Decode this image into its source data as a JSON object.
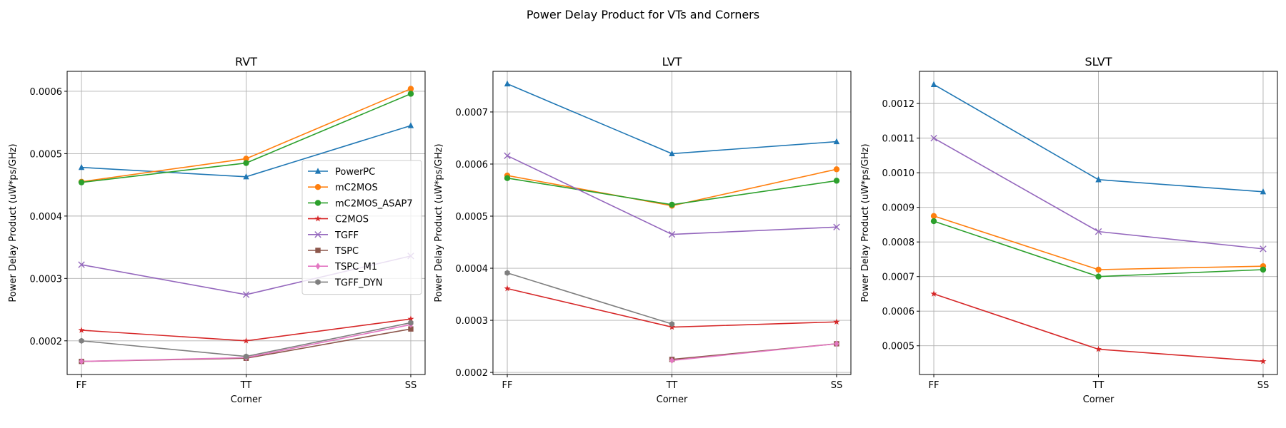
{
  "figure": {
    "title": "Power Delay Product for VTs and Corners"
  },
  "legend_panel": 0,
  "chart_data": [
    {
      "type": "line",
      "title": "RVT",
      "xlabel": "Corner",
      "ylabel": "Power Delay Product (uW*ps/GHz)",
      "categories": [
        "FF",
        "TT",
        "SS"
      ],
      "ylim": [
        0.000146,
        0.000632
      ],
      "yticks": [
        0.0002,
        0.0003,
        0.0004,
        0.0005,
        0.0006
      ],
      "ytick_labels": [
        "0.0002",
        "0.0003",
        "0.0004",
        "0.0005",
        "0.0006"
      ],
      "grid": true,
      "legend": "center-right",
      "series": [
        {
          "name": "PowerPC",
          "values": [
            0.000478,
            0.000463,
            0.000545
          ],
          "color": "#1f77b4",
          "marker": "triangle"
        },
        {
          "name": "mC2MOS",
          "values": [
            0.000455,
            0.000492,
            0.000604
          ],
          "color": "#ff7f0e",
          "marker": "circle"
        },
        {
          "name": "mC2MOS_ASAP7",
          "values": [
            0.000454,
            0.000485,
            0.000596
          ],
          "color": "#2ca02c",
          "marker": "circle"
        },
        {
          "name": "C2MOS",
          "values": [
            0.000217,
            0.0002,
            0.000235
          ],
          "color": "#d62728",
          "marker": "star"
        },
        {
          "name": "TGFF",
          "values": [
            0.000322,
            0.000274,
            0.000336
          ],
          "color": "#9467bd",
          "marker": "x"
        },
        {
          "name": "TSPC",
          "values": [
            0.000167,
            0.000172,
            0.000219
          ],
          "color": "#8c564b",
          "marker": "square"
        },
        {
          "name": "TSPC_M1",
          "values": [
            0.000167,
            0.000173,
            0.000226
          ],
          "color": "#e377c2",
          "marker": "diamond"
        },
        {
          "name": "TGFF_DYN",
          "values": [
            0.0002,
            0.000175,
            0.000229
          ],
          "color": "#7f7f7f",
          "marker": "hexagon"
        }
      ]
    },
    {
      "type": "line",
      "title": "LVT",
      "xlabel": "Corner",
      "ylabel": "Power Delay Product (uW*ps/GHz)",
      "categories": [
        "FF",
        "TT",
        "SS"
      ],
      "ylim": [
        0.000196,
        0.000778
      ],
      "yticks": [
        0.0002,
        0.0003,
        0.0004,
        0.0005,
        0.0006,
        0.0007
      ],
      "ytick_labels": [
        "0.0002",
        "0.0003",
        "0.0004",
        "0.0005",
        "0.0006",
        "0.0007"
      ],
      "grid": true,
      "series": [
        {
          "name": "PowerPC",
          "values": [
            0.000754,
            0.00062,
            0.000643
          ],
          "color": "#1f77b4",
          "marker": "triangle"
        },
        {
          "name": "mC2MOS",
          "values": [
            0.000578,
            0.00052,
            0.00059
          ],
          "color": "#ff7f0e",
          "marker": "circle"
        },
        {
          "name": "mC2MOS_ASAP7",
          "values": [
            0.000573,
            0.000522,
            0.000568
          ],
          "color": "#2ca02c",
          "marker": "circle"
        },
        {
          "name": "C2MOS",
          "values": [
            0.000361,
            0.000287,
            0.000297
          ],
          "color": "#d62728",
          "marker": "star"
        },
        {
          "name": "TGFF",
          "values": [
            0.000616,
            0.000465,
            0.000479
          ],
          "color": "#9467bd",
          "marker": "x"
        },
        {
          "name": "TSPC",
          "values": [
            null,
            0.000225,
            0.000255
          ],
          "color": "#8c564b",
          "marker": "square"
        },
        {
          "name": "TSPC_M1",
          "values": [
            null,
            0.000223,
            0.000255
          ],
          "color": "#e377c2",
          "marker": "diamond"
        },
        {
          "name": "TGFF_DYN",
          "values": [
            0.000391,
            0.000293,
            null
          ],
          "color": "#7f7f7f",
          "marker": "hexagon"
        }
      ]
    },
    {
      "type": "line",
      "title": "SLVT",
      "xlabel": "Corner",
      "ylabel": "Power Delay Product (uW*ps/GHz)",
      "categories": [
        "FF",
        "TT",
        "SS"
      ],
      "ylim": [
        0.000417,
        0.001293
      ],
      "yticks": [
        0.0005,
        0.0006,
        0.0007,
        0.0008,
        0.0009,
        0.001,
        0.0011,
        0.0012
      ],
      "ytick_labels": [
        "0.0005",
        "0.0006",
        "0.0007",
        "0.0008",
        "0.0009",
        "0.0010",
        "0.0011",
        "0.0012"
      ],
      "grid": true,
      "series": [
        {
          "name": "PowerPC",
          "values": [
            0.001255,
            0.00098,
            0.000945
          ],
          "color": "#1f77b4",
          "marker": "triangle"
        },
        {
          "name": "mC2MOS",
          "values": [
            0.000875,
            0.00072,
            0.00073
          ],
          "color": "#ff7f0e",
          "marker": "circle"
        },
        {
          "name": "mC2MOS_ASAP7",
          "values": [
            0.00086,
            0.0007,
            0.00072
          ],
          "color": "#2ca02c",
          "marker": "circle"
        },
        {
          "name": "C2MOS",
          "values": [
            0.00065,
            0.00049,
            0.000455
          ],
          "color": "#d62728",
          "marker": "star"
        },
        {
          "name": "TGFF",
          "values": [
            0.0011,
            0.00083,
            0.00078
          ],
          "color": "#9467bd",
          "marker": "x"
        }
      ]
    }
  ]
}
